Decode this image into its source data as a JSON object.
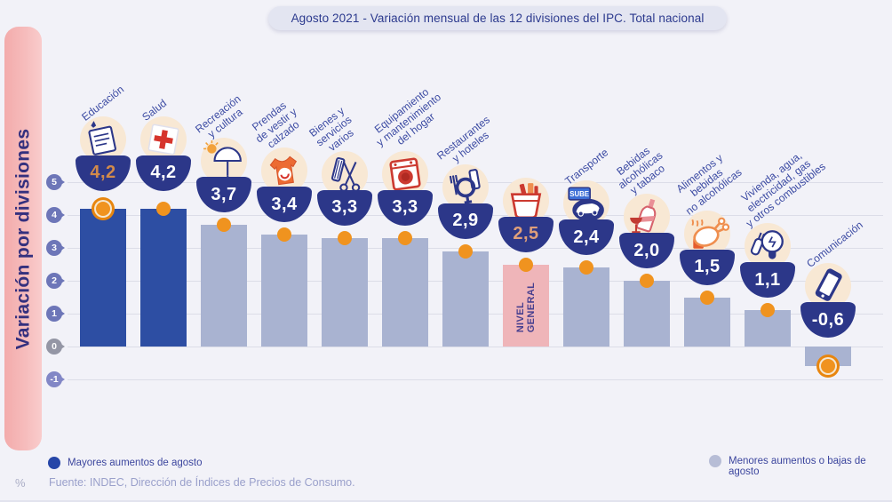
{
  "title": "Agosto 2021 - Variación mensual de las 12 divisiones del IPC. Total nacional",
  "y_axis_label": "Variación por divisiones",
  "unit_label": "%",
  "source": "Fuente: INDEC, Dirección de Índices de Precios de Consumo.",
  "legend": {
    "high": "Mayores  aumentos de agosto",
    "low": "Menores  aumentos o bajas de agosto"
  },
  "colors": {
    "background": "#f2f2f8",
    "dark_bar": "#2d4ea3",
    "light_bar": "#a9b3d1",
    "pink_bar": "#efb5b9",
    "bowl_navy": "#2c3789",
    "marker_orange": "#f0931f",
    "icon_circle_beige": "#f8e8d4",
    "band_pink": "#f6bcbc",
    "label_blue": "#3c4ba3"
  },
  "chart_data": {
    "type": "bar",
    "title": "Agosto 2021 - Variación mensual de las 12 divisiones del IPC. Total nacional",
    "xlabel": "",
    "ylabel": "Variación por divisiones",
    "unit": "%",
    "ylim": [
      -1,
      5
    ],
    "yticks": [
      5,
      4,
      3,
      2,
      1,
      0,
      -1
    ],
    "grid": true,
    "legend_position": "bottom",
    "bars": [
      {
        "name": "Educación",
        "label_lines": [
          "Educación"
        ],
        "value": 4.2,
        "display": "4,2",
        "group": "high",
        "icon": "education",
        "ring": true,
        "value_color": "orange"
      },
      {
        "name": "Salud",
        "label_lines": [
          "Salud"
        ],
        "value": 4.2,
        "display": "4,2",
        "group": "high",
        "icon": "health",
        "ring": false
      },
      {
        "name": "Recreación y cultura",
        "label_lines": [
          "Recreación",
          "y cultura"
        ],
        "value": 3.7,
        "display": "3,7",
        "group": "low",
        "icon": "recreation",
        "ring": false
      },
      {
        "name": "Prendas de vestir y calzado",
        "label_lines": [
          "Prendas",
          "de vestir y",
          "calzado"
        ],
        "value": 3.4,
        "display": "3,4",
        "group": "low",
        "icon": "clothing",
        "ring": false
      },
      {
        "name": "Bienes y servicios varios",
        "label_lines": [
          "Bienes y",
          "servicios",
          "varios"
        ],
        "value": 3.3,
        "display": "3,3",
        "group": "low",
        "icon": "services",
        "ring": false
      },
      {
        "name": "Equipamiento y mantenimiento del hogar",
        "label_lines": [
          "Equipamiento",
          "y mantenimiento",
          "del hogar"
        ],
        "value": 3.3,
        "display": "3,3",
        "group": "low",
        "icon": "home",
        "ring": false
      },
      {
        "name": "Restaurantes y hoteles",
        "label_lines": [
          "Restaurantes",
          "y hoteles"
        ],
        "value": 2.9,
        "display": "2,9",
        "group": "low",
        "icon": "restaurant",
        "ring": false
      },
      {
        "name": "Nivel general",
        "label_lines": [],
        "inner_label": [
          "NIVEL",
          "GENERAL"
        ],
        "value": 2.5,
        "display": "2,5",
        "group": "general",
        "icon": "basket",
        "ring": false,
        "value_color": "salmon"
      },
      {
        "name": "Transporte",
        "label_lines": [
          "Transporte"
        ],
        "value": 2.4,
        "display": "2,4",
        "group": "low",
        "icon": "transport",
        "ring": false
      },
      {
        "name": "Bebidas alcohólicas y tabaco",
        "label_lines": [
          "Bebidas",
          "alcohólicas",
          "y tabaco"
        ],
        "value": 2.0,
        "display": "2,0",
        "group": "low",
        "icon": "alcohol",
        "ring": false
      },
      {
        "name": "Alimentos y bebidas no alcohólicas",
        "label_lines": [
          "Alimentos y",
          "bebidas",
          "no alcohólicas"
        ],
        "value": 1.5,
        "display": "1,5",
        "group": "low",
        "icon": "food",
        "ring": false
      },
      {
        "name": "Vivienda, agua, electricidad, gas y otros combustibles",
        "label_lines": [
          "Vivienda, agua,",
          "electricidad, gas",
          "y otros combustibles"
        ],
        "value": 1.1,
        "display": "1,1",
        "group": "low",
        "icon": "housing",
        "ring": false
      },
      {
        "name": "Comunicación",
        "label_lines": [
          "Comunicación"
        ],
        "value": -0.6,
        "display": "-0,6",
        "group": "low",
        "icon": "communication",
        "ring": true
      }
    ]
  }
}
